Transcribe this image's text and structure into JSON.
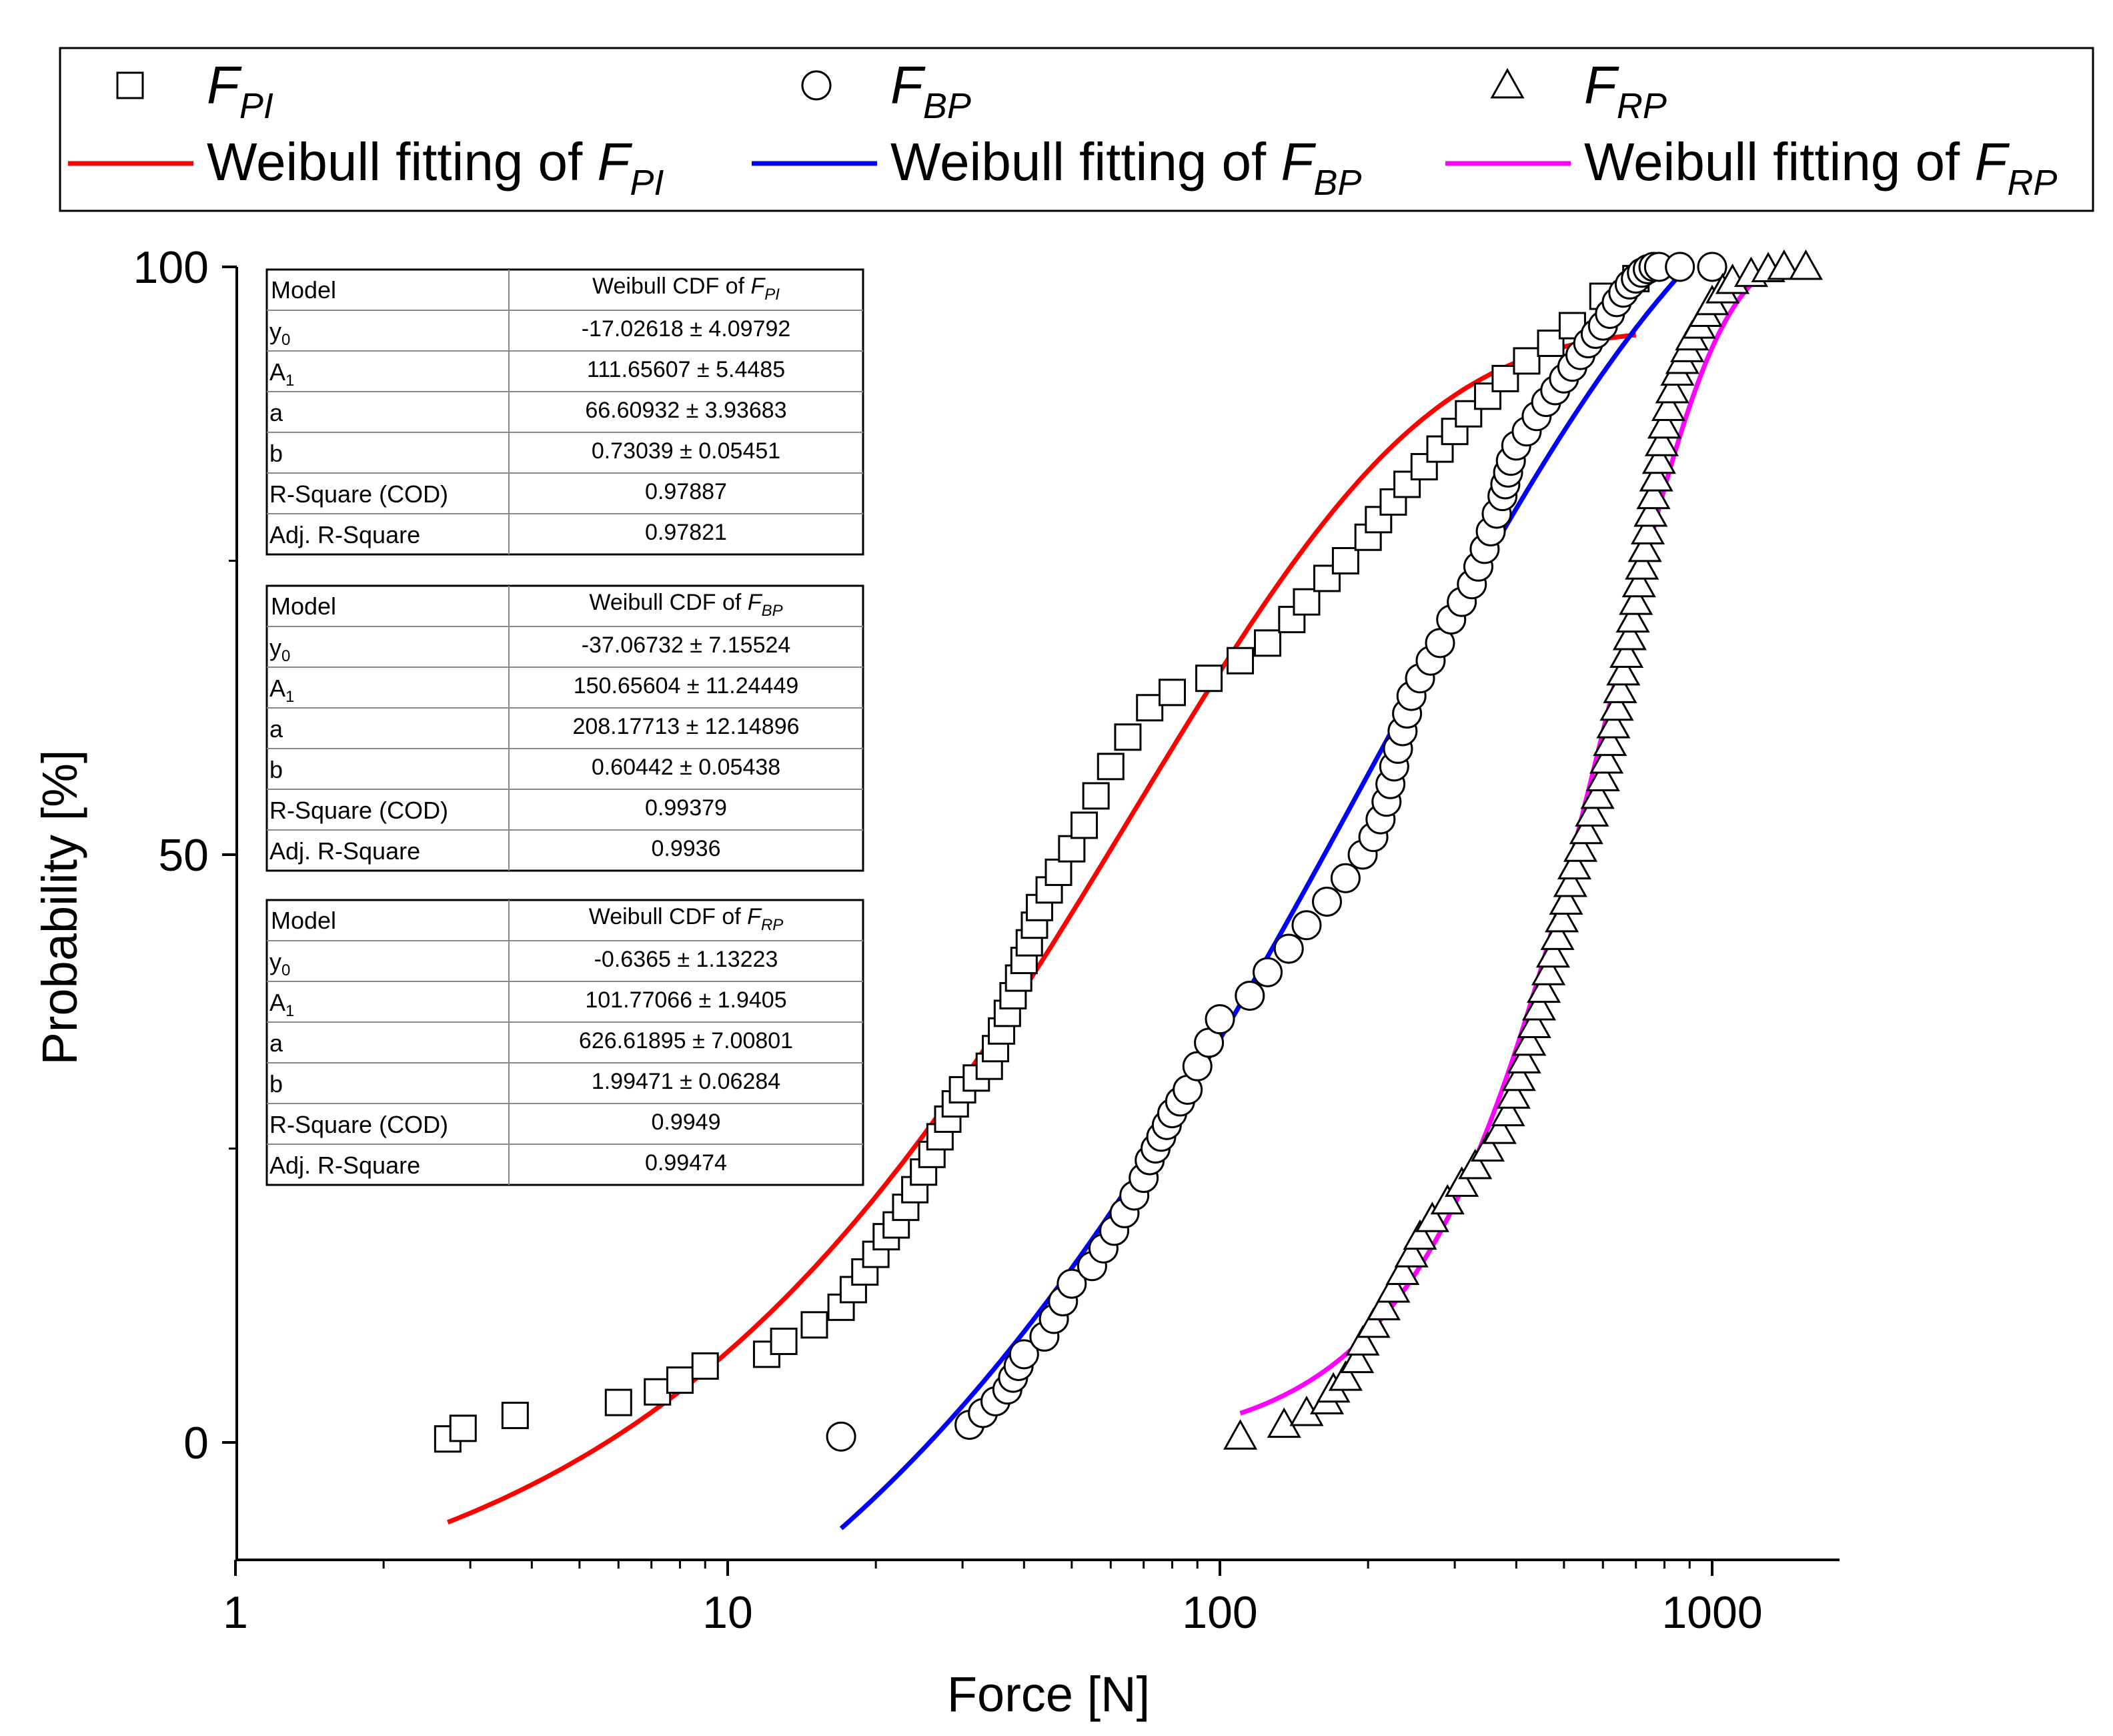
{
  "chart_data": {
    "type": "scatter",
    "xlabel": "Force [N]",
    "ylabel": "Probability [%]",
    "xscale": "log",
    "xlim": [
      1,
      1700
    ],
    "ylim": [
      -10,
      100
    ],
    "x_ticks": [
      1,
      10,
      100,
      1000
    ],
    "x_tick_labels": [
      "1",
      "10",
      "100",
      "1000"
    ],
    "y_ticks": [
      0,
      50,
      100
    ],
    "y_tick_labels": [
      "0",
      "50",
      "100"
    ],
    "legend": {
      "position": "top",
      "entries": [
        {
          "key": "fpi",
          "marker": "square",
          "base": "F",
          "sub": "PI"
        },
        {
          "key": "fbp",
          "marker": "circle",
          "base": "F",
          "sub": "BP"
        },
        {
          "key": "frp",
          "marker": "triangle",
          "base": "F",
          "sub": "RP"
        },
        {
          "key": "fit_fpi",
          "line": "#ff0000",
          "prefix": "Weibull fitting of ",
          "base": "F",
          "sub": "PI"
        },
        {
          "key": "fit_fbp",
          "line": "#0000ff",
          "prefix": "Weibull fitting of ",
          "base": "F",
          "sub": "BP"
        },
        {
          "key": "fit_frp",
          "line": "#ff00ff",
          "prefix": "Weibull fitting of ",
          "base": "F",
          "sub": "RP"
        }
      ]
    },
    "series": [
      {
        "name": "F_PI",
        "marker": "square",
        "x": [
          2.7,
          2.9,
          3.7,
          6,
          7.2,
          8,
          9,
          12,
          13,
          15,
          17,
          18,
          19,
          20,
          21,
          22,
          23,
          24,
          25,
          26,
          27,
          28,
          29,
          30,
          32,
          34,
          35,
          36,
          37,
          38,
          39,
          40,
          41,
          42,
          43,
          45,
          47,
          50,
          53,
          56,
          60,
          65,
          72,
          80,
          95,
          110,
          125,
          140,
          150,
          165,
          180,
          200,
          210,
          225,
          240,
          260,
          280,
          300,
          320,
          350,
          380,
          420,
          470,
          520,
          600,
          700
        ],
        "y": [
          0.3,
          1.2,
          2.3,
          3.4,
          4.3,
          5.3,
          6.5,
          7.5,
          8.6,
          10,
          11.5,
          13,
          14.5,
          16,
          17.5,
          18.5,
          20,
          21.5,
          23,
          24.5,
          26,
          27.5,
          28.8,
          30,
          31,
          32,
          33.5,
          35,
          36.5,
          38,
          39.5,
          41,
          42.5,
          44,
          45.5,
          47,
          48.5,
          50.5,
          52.5,
          55,
          57.5,
          60,
          62.5,
          63.8,
          65,
          66.5,
          68,
          70,
          71.5,
          73.5,
          75,
          77,
          78.5,
          80,
          81.5,
          83,
          84.5,
          86,
          87.5,
          89,
          90.5,
          92,
          93.5,
          95,
          97.5,
          99
        ]
      },
      {
        "name": "F_BP",
        "marker": "circle",
        "x": [
          17,
          31,
          33,
          35,
          37,
          38,
          39,
          40,
          44,
          46,
          48,
          50,
          55,
          58,
          61,
          64,
          67,
          70,
          72,
          74,
          76,
          78,
          80,
          83,
          86,
          90,
          95,
          100,
          115,
          125,
          138,
          150,
          165,
          180,
          195,
          205,
          212,
          218,
          222,
          226,
          230,
          235,
          240,
          245,
          255,
          268,
          280,
          295,
          310,
          325,
          335,
          345,
          355,
          365,
          375,
          380,
          385,
          390,
          400,
          420,
          440,
          460,
          480,
          500,
          520,
          540,
          560,
          580,
          600,
          620,
          640,
          660,
          680,
          700,
          720,
          740,
          760,
          780,
          860,
          1000
        ],
        "y": [
          0.5,
          1.5,
          2.5,
          3.5,
          4.5,
          5.5,
          6.5,
          7.5,
          9,
          10.5,
          12,
          13.5,
          15,
          16.5,
          18,
          19.5,
          21,
          22.5,
          24,
          25,
          26,
          27,
          28,
          29,
          30,
          32,
          34,
          36,
          38,
          40,
          42,
          44,
          46,
          48,
          50,
          51.5,
          53,
          54.5,
          56,
          57.5,
          59,
          60.5,
          62,
          63.5,
          65,
          66.5,
          68,
          70,
          71.5,
          73,
          74.5,
          76,
          77.5,
          79,
          80.5,
          81.5,
          82.5,
          83.5,
          84.8,
          86,
          87.3,
          88.5,
          89.5,
          90.5,
          91.5,
          92.5,
          93.5,
          94.3,
          95,
          96,
          97,
          97.8,
          98.5,
          99,
          99.5,
          99.8,
          100,
          100,
          100,
          100
        ],
        "y_note": "percent"
      },
      {
        "name": "F_RP",
        "marker": "triangle",
        "x": [
          110,
          135,
          150,
          165,
          170,
          180,
          190,
          195,
          205,
          215,
          225,
          235,
          245,
          255,
          270,
          290,
          310,
          330,
          350,
          370,
          385,
          395,
          405,
          415,
          425,
          435,
          445,
          455,
          465,
          475,
          485,
          495,
          505,
          515,
          525,
          540,
          555,
          570,
          585,
          600,
          610,
          620,
          630,
          640,
          650,
          660,
          670,
          680,
          690,
          700,
          710,
          720,
          730,
          740,
          750,
          760,
          770,
          780,
          790,
          800,
          815,
          830,
          850,
          870,
          890,
          910,
          940,
          970,
          1000,
          1050,
          1100,
          1200,
          1300,
          1400,
          1550
        ],
        "y": [
          0.5,
          1.5,
          2.5,
          3.5,
          4.5,
          5.5,
          7,
          8.5,
          10,
          11.5,
          13,
          14.5,
          16,
          17.5,
          19,
          20.5,
          22,
          23.5,
          25,
          26.5,
          28,
          29.5,
          31,
          32.5,
          34,
          35.5,
          37,
          38.5,
          40,
          41.5,
          43,
          44.5,
          46,
          47.5,
          49,
          50.5,
          52,
          53.5,
          55,
          56.5,
          58,
          59.5,
          61,
          62.5,
          64,
          65.5,
          67,
          68.5,
          70,
          71.5,
          73,
          74.5,
          76,
          77.5,
          79,
          80.5,
          82,
          83.5,
          85,
          86.5,
          88,
          89.5,
          91,
          92,
          93,
          94,
          95,
          96,
          97,
          98,
          98.8,
          99.4,
          99.8,
          100,
          100
        ]
      },
      {
        "name": "Weibull fitting of F_PI",
        "type": "line",
        "color": "#ff0000",
        "model": "weibull_cdf",
        "y0": -17.02618,
        "A1": 111.65607,
        "a": 66.60932,
        "b": 0.73039,
        "x_range": [
          2.7,
          700
        ]
      },
      {
        "name": "Weibull fitting of F_BP",
        "type": "line",
        "color": "#0000ff",
        "model": "weibull_cdf",
        "y0": -37.06732,
        "A1": 150.65604,
        "a": 208.17713,
        "b": 0.60442,
        "x_range": [
          17,
          900
        ]
      },
      {
        "name": "Weibull fitting of F_RP",
        "type": "line",
        "color": "#ff00ff",
        "model": "weibull_cdf",
        "y0": -0.6365,
        "A1": 101.77066,
        "a": 626.61895,
        "b": 1.99471,
        "x_range": [
          110,
          1300
        ]
      }
    ],
    "tables": [
      {
        "header": {
          "label": "Model",
          "value_prefix": "Weibull CDF of ",
          "base": "F",
          "sub": "PI"
        },
        "rows": [
          {
            "label": "y",
            "label_sub": "0",
            "value": "-17.02618 ± 4.09792"
          },
          {
            "label": "A",
            "label_sub": "1",
            "value": "111.65607 ± 5.4485"
          },
          {
            "label": "a",
            "label_sub": "",
            "value": "66.60932 ± 3.93683"
          },
          {
            "label": "b",
            "label_sub": "",
            "value": "0.73039 ± 0.05451"
          },
          {
            "label": "R-Square (COD)",
            "label_sub": "",
            "value": "0.97887"
          },
          {
            "label": "Adj. R-Square",
            "label_sub": "",
            "value": "0.97821"
          }
        ]
      },
      {
        "header": {
          "label": "Model",
          "value_prefix": "Weibull CDF of ",
          "base": "F",
          "sub": "BP"
        },
        "rows": [
          {
            "label": "y",
            "label_sub": "0",
            "value": "-37.06732 ± 7.15524"
          },
          {
            "label": "A",
            "label_sub": "1",
            "value": "150.65604 ± 11.24449"
          },
          {
            "label": "a",
            "label_sub": "",
            "value": "208.17713 ± 12.14896"
          },
          {
            "label": "b",
            "label_sub": "",
            "value": "0.60442 ± 0.05438"
          },
          {
            "label": "R-Square (COD)",
            "label_sub": "",
            "value": "0.99379"
          },
          {
            "label": "Adj. R-Square",
            "label_sub": "",
            "value": "0.9936"
          }
        ]
      },
      {
        "header": {
          "label": "Model",
          "value_prefix": "Weibull CDF of ",
          "base": "F",
          "sub": "RP"
        },
        "rows": [
          {
            "label": "y",
            "label_sub": "0",
            "value": "-0.6365 ± 1.13223"
          },
          {
            "label": "A",
            "label_sub": "1",
            "value": "101.77066 ± 1.9405"
          },
          {
            "label": "a",
            "label_sub": "",
            "value": "626.61895 ± 7.00801"
          },
          {
            "label": "b",
            "label_sub": "",
            "value": "1.99471 ± 0.06284"
          },
          {
            "label": "R-Square (COD)",
            "label_sub": "",
            "value": "0.9949"
          },
          {
            "label": "Adj. R-Square",
            "label_sub": "",
            "value": "0.99474"
          }
        ]
      }
    ]
  }
}
